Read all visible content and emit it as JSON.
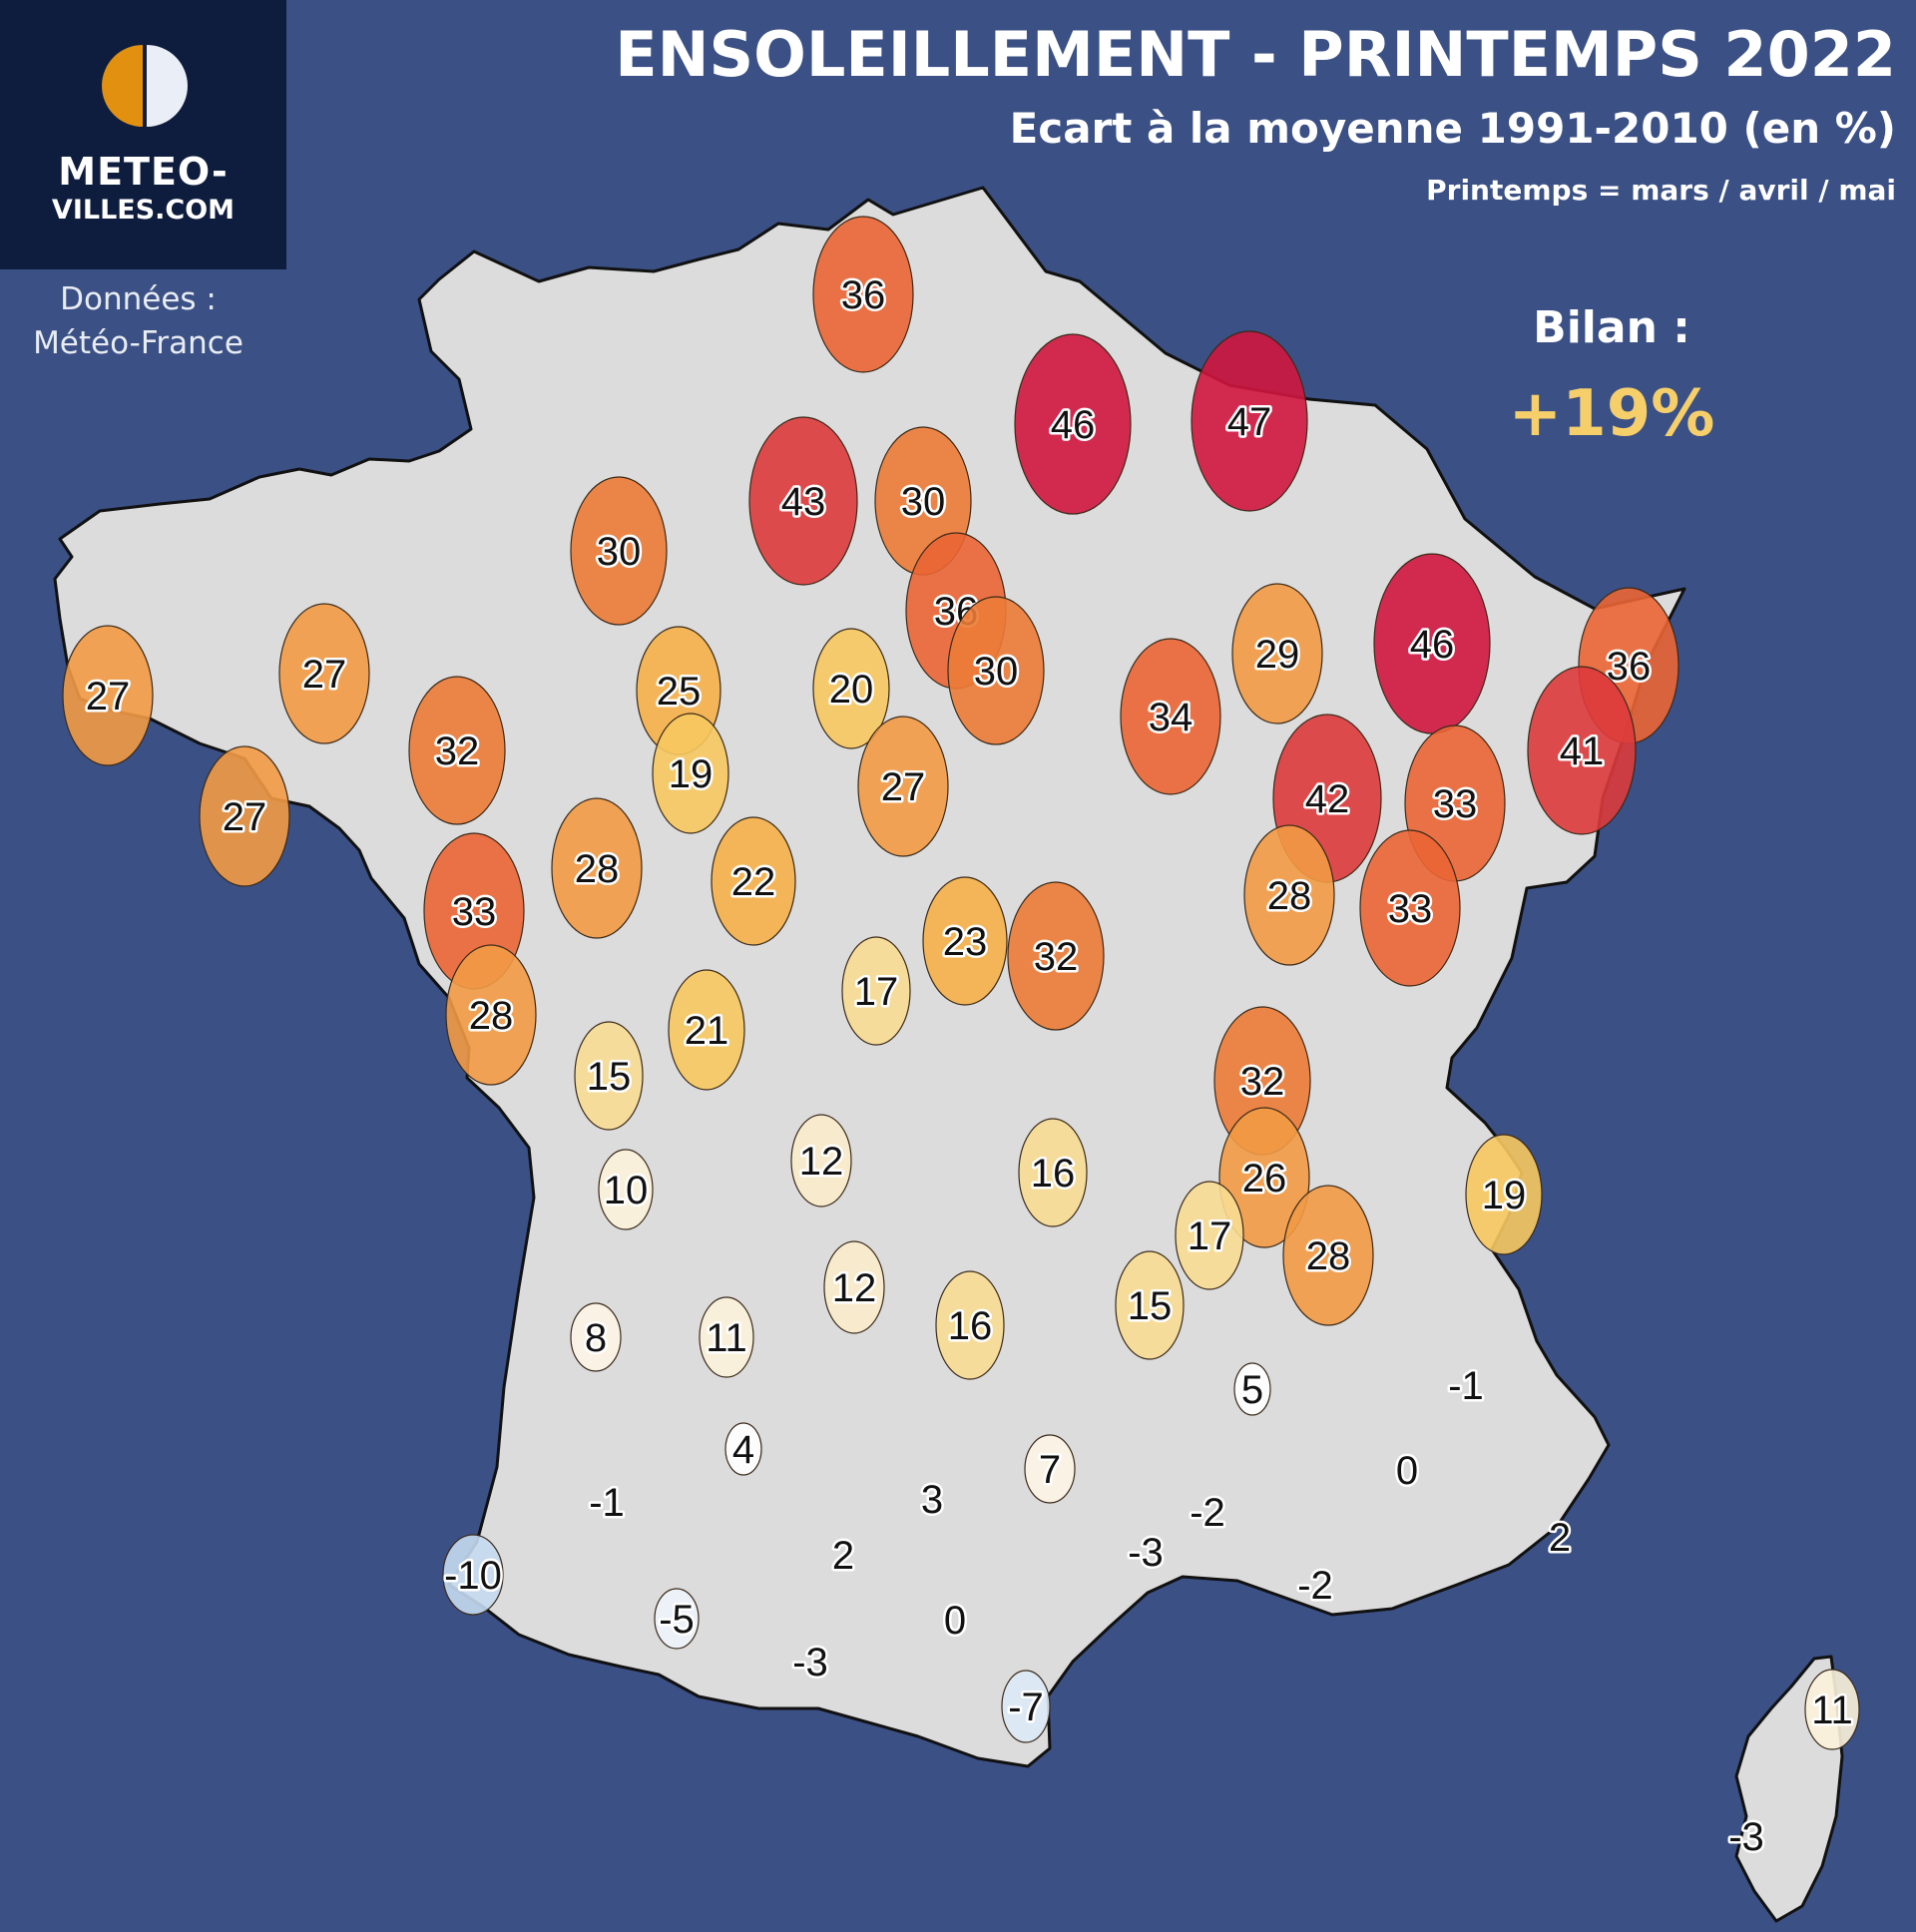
{
  "header": {
    "title": "ENSOLEILLEMENT - PRINTEMPS 2022",
    "subtitle": "Ecart à la moyenne 1991-2010 (en %)",
    "note": "Printemps = mars / avril / mai"
  },
  "logo": {
    "line1": "METEO-",
    "line2": "VILLES.COM"
  },
  "source": {
    "label": "Données :",
    "name": "Météo-France"
  },
  "summary": {
    "label": "Bilan :",
    "value": "+19%"
  },
  "colors": {
    "background": "#3b5084",
    "land": "#dcdcdc",
    "logo_box": "#0e1c3d",
    "summary_value": "#f6cf6a"
  },
  "stations": [
    {
      "value": "36"
    },
    {
      "value": "46"
    },
    {
      "value": "47"
    },
    {
      "value": "43"
    },
    {
      "value": "30"
    },
    {
      "value": "30"
    },
    {
      "value": "36"
    },
    {
      "value": "30"
    },
    {
      "value": "27"
    },
    {
      "value": "27"
    },
    {
      "value": "25"
    },
    {
      "value": "20"
    },
    {
      "value": "29"
    },
    {
      "value": "46"
    },
    {
      "value": "36"
    },
    {
      "value": "32"
    },
    {
      "value": "34"
    },
    {
      "value": "41"
    },
    {
      "value": "19"
    },
    {
      "value": "27"
    },
    {
      "value": "27"
    },
    {
      "value": "42"
    },
    {
      "value": "33"
    },
    {
      "value": "28"
    },
    {
      "value": "22"
    },
    {
      "value": "28"
    },
    {
      "value": "33"
    },
    {
      "value": "33"
    },
    {
      "value": "23"
    },
    {
      "value": "32"
    },
    {
      "value": "17"
    },
    {
      "value": "28"
    },
    {
      "value": "21"
    },
    {
      "value": "15"
    },
    {
      "value": "32"
    },
    {
      "value": "12"
    },
    {
      "value": "16"
    },
    {
      "value": "26"
    },
    {
      "value": "10"
    },
    {
      "value": "19"
    },
    {
      "value": "17"
    },
    {
      "value": "28"
    },
    {
      "value": "12"
    },
    {
      "value": "15"
    },
    {
      "value": "16"
    },
    {
      "value": "8"
    },
    {
      "value": "11"
    },
    {
      "value": "5"
    },
    {
      "value": "-1"
    },
    {
      "value": "4"
    },
    {
      "value": "7"
    },
    {
      "value": "0"
    },
    {
      "value": "3"
    },
    {
      "value": "-1"
    },
    {
      "value": "-2"
    },
    {
      "value": "2"
    },
    {
      "value": "2"
    },
    {
      "value": "-10"
    },
    {
      "value": "-3"
    },
    {
      "value": "-2"
    },
    {
      "value": "-5"
    },
    {
      "value": "0"
    },
    {
      "value": "-3"
    },
    {
      "value": "-7"
    },
    {
      "value": "11"
    },
    {
      "value": "-3"
    }
  ]
}
